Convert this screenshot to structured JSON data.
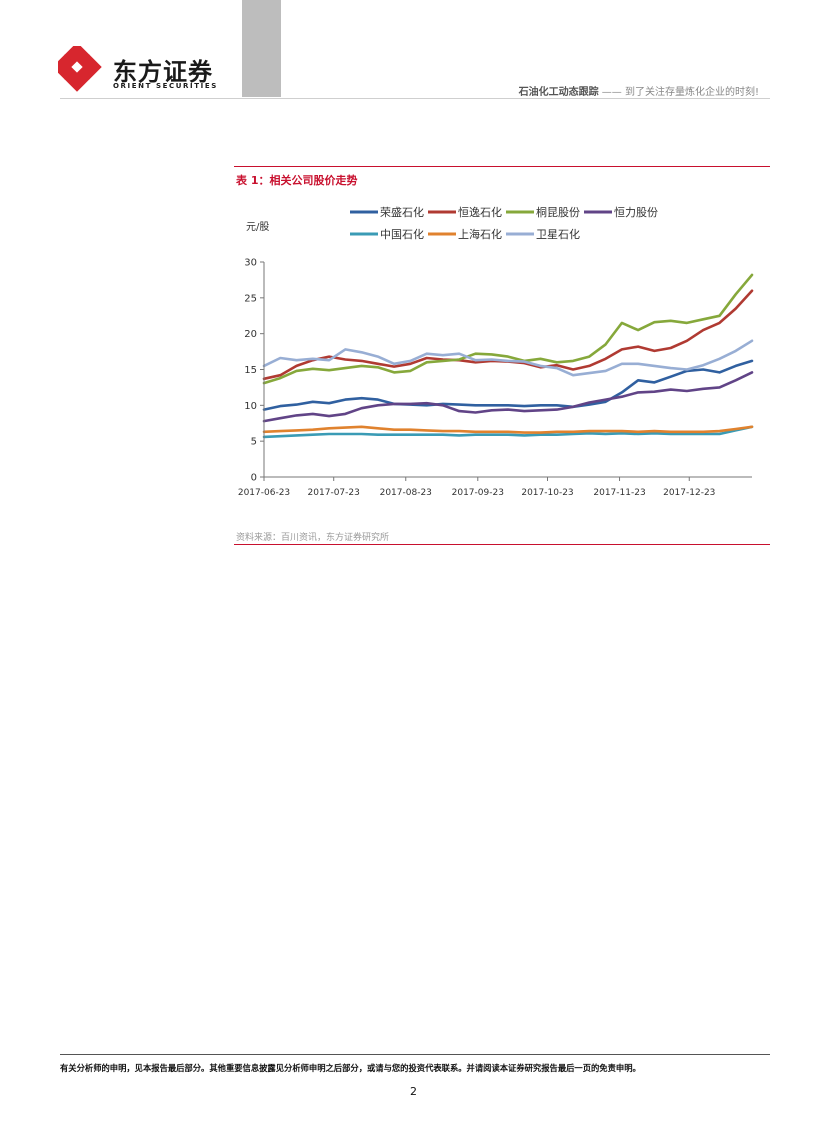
{
  "header": {
    "brand_cn": "东方证券",
    "brand_en": "ORIENT SECURITIES",
    "report_series": "石油化工动态跟踪",
    "separator": "——",
    "report_title": "到了关注存量炼化企业的时刻!"
  },
  "figure": {
    "title": "表 1：相关公司股价走势",
    "source": "资料来源：百川资讯，东方证券研究所"
  },
  "chart_data": {
    "type": "line",
    "ylabel": "元/股",
    "ylim": [
      0,
      30
    ],
    "yticks": [
      "0",
      "5",
      "10",
      "15",
      "20",
      "25",
      "30"
    ],
    "xticks": [
      "2017-06-23",
      "2017-07-23",
      "2017-08-23",
      "2017-09-23",
      "2017-10-23",
      "2017-11-23",
      "2017-12-23"
    ],
    "x": [
      "2017-06-23",
      "2017-06-30",
      "2017-07-07",
      "2017-07-14",
      "2017-07-21",
      "2017-07-28",
      "2017-08-04",
      "2017-08-11",
      "2017-08-18",
      "2017-08-25",
      "2017-09-01",
      "2017-09-08",
      "2017-09-15",
      "2017-09-22",
      "2017-09-29",
      "2017-10-06",
      "2017-10-13",
      "2017-10-20",
      "2017-10-27",
      "2017-11-03",
      "2017-11-10",
      "2017-11-17",
      "2017-11-24",
      "2017-12-01",
      "2017-12-08",
      "2017-12-15",
      "2017-12-22",
      "2017-12-29",
      "2018-01-05",
      "2018-01-12",
      "2018-01-19"
    ],
    "legend_position": "top",
    "series": [
      {
        "name": "荣盛石化",
        "color": "#3060a0",
        "values": [
          9.4,
          9.9,
          10.1,
          10.5,
          10.3,
          10.8,
          11.0,
          10.8,
          10.2,
          10.1,
          10.0,
          10.2,
          10.1,
          10.0,
          10.0,
          10.0,
          9.9,
          10.0,
          10.0,
          9.8,
          10.1,
          10.5,
          11.8,
          13.5,
          13.2,
          14.0,
          14.8,
          15.0,
          14.6,
          15.5,
          16.2
        ]
      },
      {
        "name": "恒逸石化",
        "color": "#b03a32",
        "values": [
          13.7,
          14.2,
          15.5,
          16.3,
          16.8,
          16.4,
          16.2,
          15.8,
          15.4,
          15.8,
          16.6,
          16.4,
          16.3,
          16.0,
          16.2,
          16.1,
          15.9,
          15.3,
          15.6,
          15.0,
          15.5,
          16.5,
          17.8,
          18.2,
          17.6,
          18.0,
          19.0,
          20.5,
          21.5,
          23.5,
          26.0
        ]
      },
      {
        "name": "桐昆股份",
        "color": "#86a83b",
        "values": [
          13.1,
          13.8,
          14.8,
          15.1,
          14.9,
          15.2,
          15.5,
          15.3,
          14.6,
          14.8,
          16.0,
          16.2,
          16.4,
          17.2,
          17.1,
          16.8,
          16.2,
          16.5,
          16.0,
          16.2,
          16.8,
          18.5,
          21.5,
          20.5,
          21.6,
          21.8,
          21.5,
          22.0,
          22.5,
          25.5,
          28.2
        ]
      },
      {
        "name": "恒力股份",
        "color": "#614487",
        "values": [
          7.8,
          8.2,
          8.6,
          8.8,
          8.5,
          8.8,
          9.6,
          10.0,
          10.2,
          10.2,
          10.3,
          10.0,
          9.2,
          9.0,
          9.3,
          9.4,
          9.2,
          9.3,
          9.4,
          9.8,
          10.4,
          10.8,
          11.2,
          11.8,
          11.9,
          12.2,
          12.0,
          12.3,
          12.5,
          13.5,
          14.6
        ]
      },
      {
        "name": "中国石化",
        "color": "#3a9bb5",
        "values": [
          5.6,
          5.7,
          5.8,
          5.9,
          6.0,
          6.0,
          6.0,
          5.9,
          5.9,
          5.9,
          5.9,
          5.9,
          5.8,
          5.9,
          5.9,
          5.9,
          5.8,
          5.9,
          5.9,
          6.0,
          6.1,
          6.0,
          6.1,
          6.0,
          6.1,
          6.0,
          6.0,
          6.0,
          6.0,
          6.5,
          7.0
        ]
      },
      {
        "name": "上海石化",
        "color": "#e0822e",
        "values": [
          6.3,
          6.4,
          6.5,
          6.6,
          6.8,
          6.9,
          7.0,
          6.8,
          6.6,
          6.6,
          6.5,
          6.4,
          6.4,
          6.3,
          6.3,
          6.3,
          6.2,
          6.2,
          6.3,
          6.3,
          6.4,
          6.4,
          6.4,
          6.3,
          6.4,
          6.3,
          6.3,
          6.3,
          6.4,
          6.7,
          7.0
        ]
      },
      {
        "name": "卫星石化",
        "color": "#98aed4",
        "values": [
          15.5,
          16.6,
          16.3,
          16.5,
          16.3,
          17.8,
          17.4,
          16.8,
          15.8,
          16.2,
          17.2,
          17.0,
          17.2,
          16.3,
          16.4,
          16.2,
          16.1,
          15.5,
          15.2,
          14.2,
          14.5,
          14.8,
          15.8,
          15.8,
          15.5,
          15.2,
          15.0,
          15.6,
          16.5,
          17.6,
          19.0
        ]
      }
    ]
  },
  "footer": {
    "disclaimer": "有关分析师的申明，见本报告最后部分。其他重要信息披露见分析师申明之后部分，或请与您的投资代表联系。并请阅读本证券研究报告最后一页的免责申明。",
    "page_number": "2"
  }
}
